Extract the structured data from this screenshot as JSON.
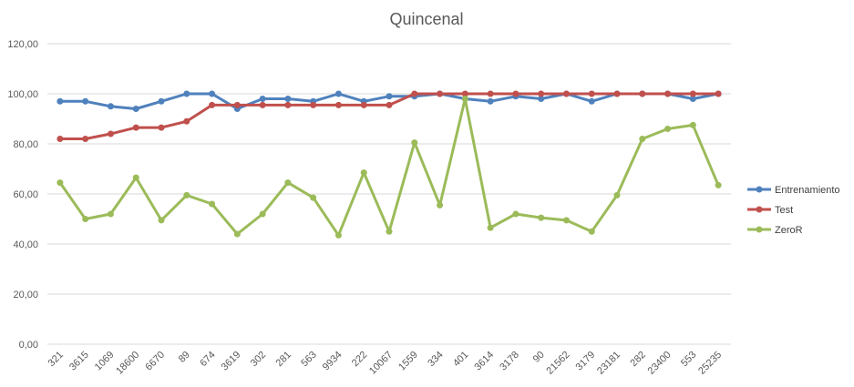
{
  "chart_data": {
    "type": "line",
    "title": "Quincenal",
    "xlabel": "",
    "ylabel": "",
    "ylim": [
      0,
      120
    ],
    "yticks": [
      "0,00",
      "20,00",
      "40,00",
      "60,00",
      "80,00",
      "100,00",
      "120,00"
    ],
    "grid": true,
    "legend_position": "right",
    "categories": [
      "321",
      "3615",
      "1069",
      "18600",
      "6670",
      "89",
      "674",
      "3619",
      "302",
      "281",
      "563",
      "9934",
      "222",
      "10067",
      "1559",
      "334",
      "401",
      "3614",
      "3178",
      "90",
      "21562",
      "3179",
      "23181",
      "282",
      "23400",
      "553",
      "25235"
    ],
    "series": [
      {
        "name": "Entrenamiento",
        "color": "#4f81bd",
        "values": [
          97,
          97,
          95,
          94,
          97,
          100,
          100,
          94,
          98,
          98,
          97,
          100,
          97,
          99,
          99,
          100,
          98,
          97,
          99,
          98,
          100,
          97,
          100,
          100,
          100,
          98,
          100
        ]
      },
      {
        "name": "Test",
        "color": "#c0504d",
        "values": [
          82,
          82,
          84,
          86.5,
          86.5,
          89,
          95.5,
          95.5,
          95.5,
          95.5,
          95.5,
          95.5,
          95.5,
          95.5,
          100,
          100,
          100,
          100,
          100,
          100,
          100,
          100,
          100,
          100,
          100,
          100,
          100
        ]
      },
      {
        "name": "ZeroR",
        "color": "#9bbb59",
        "values": [
          64.5,
          50,
          52,
          66.5,
          49.5,
          59.5,
          56,
          44,
          52,
          64.5,
          58.5,
          43.5,
          68.5,
          45,
          80.5,
          55.5,
          98,
          46.5,
          52,
          50.5,
          49.5,
          45,
          59.5,
          82,
          86,
          87.5,
          63.5
        ]
      }
    ]
  }
}
